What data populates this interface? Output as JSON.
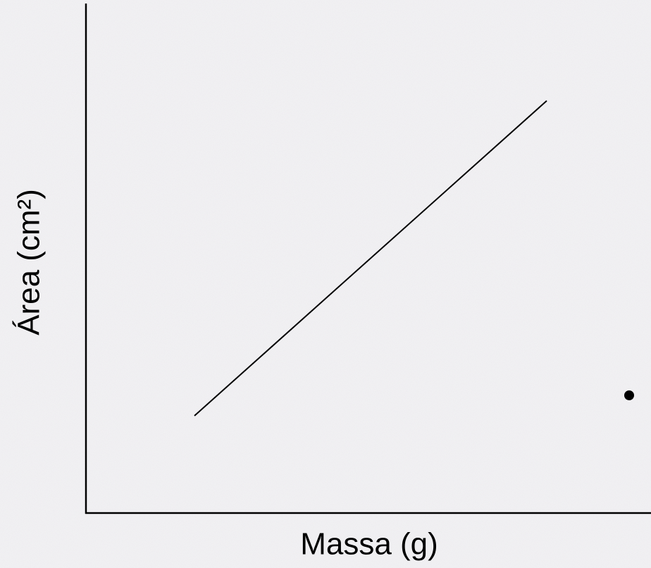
{
  "chart_data": {
    "type": "line",
    "x_label": "Massa (g)",
    "y_label": "Área (cm²)"
  }
}
